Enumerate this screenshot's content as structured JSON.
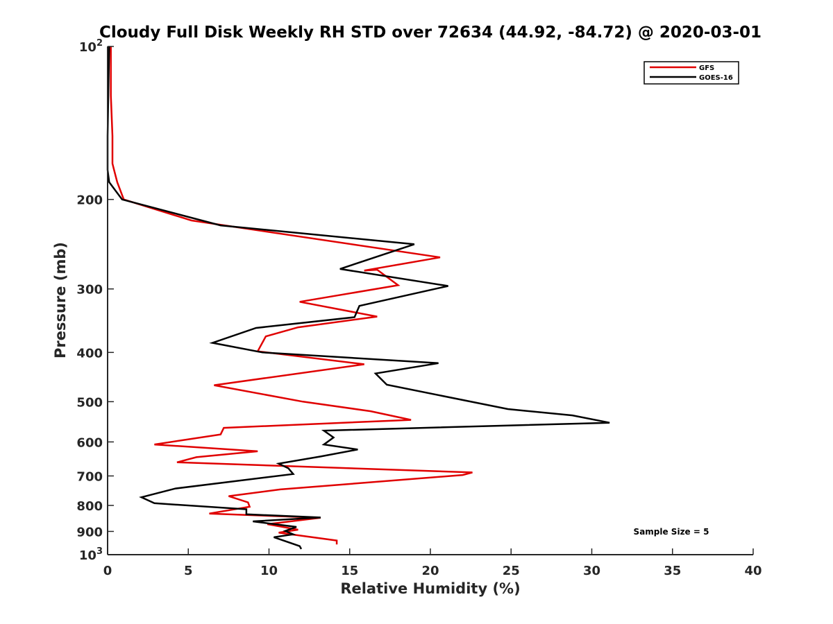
{
  "chart_data": {
    "type": "line",
    "title": "Cloudy Full Disk Weekly RH STD over 72634 (44.92, -84.72) @ 2020-03-01",
    "xlabel": "Relative Humidity (%)",
    "ylabel": "Pressure (mb)",
    "xlim": [
      0,
      40
    ],
    "ylim": [
      100,
      1000
    ],
    "yscale": "log",
    "y_reversed": true,
    "grid": false,
    "legend_position": "top-right",
    "x_ticks": [
      "0",
      "5",
      "10",
      "15",
      "20",
      "25",
      "30",
      "35",
      "40"
    ],
    "y_ticks": [
      {
        "value": 100,
        "base": "10",
        "exp": "2"
      },
      {
        "value": 200,
        "label": "200"
      },
      {
        "value": 300,
        "label": "300"
      },
      {
        "value": 400,
        "label": "400"
      },
      {
        "value": 500,
        "label": "500"
      },
      {
        "value": 600,
        "label": "600"
      },
      {
        "value": 700,
        "label": "700"
      },
      {
        "value": 800,
        "label": "800"
      },
      {
        "value": 900,
        "label": "900"
      },
      {
        "value": 1000,
        "base": "10",
        "exp": "3"
      }
    ],
    "series": [
      {
        "name": "GFS",
        "color": "#e00000",
        "points": [
          [
            0.2,
            100
          ],
          [
            0.2,
            125
          ],
          [
            0.3,
            150
          ],
          [
            0.3,
            170
          ],
          [
            0.4,
            175
          ],
          [
            0.6,
            185
          ],
          [
            1.0,
            200
          ],
          [
            5.2,
            220
          ],
          [
            20.6,
            260
          ],
          [
            15.9,
            276
          ],
          [
            16.7,
            275
          ],
          [
            18.0,
            295
          ],
          [
            11.9,
            318
          ],
          [
            16.7,
            340
          ],
          [
            11.8,
            357
          ],
          [
            9.8,
            372
          ],
          [
            9.3,
            398
          ],
          [
            15.9,
            422
          ],
          [
            6.6,
            464
          ],
          [
            12.1,
            500
          ],
          [
            16.3,
            522
          ],
          [
            18.8,
            543
          ],
          [
            7.2,
            563
          ],
          [
            7.0,
            580
          ],
          [
            2.9,
            607
          ],
          [
            9.3,
            626
          ],
          [
            5.5,
            643
          ],
          [
            4.3,
            658
          ],
          [
            22.6,
            689
          ],
          [
            22.0,
            697
          ],
          [
            10.7,
            744
          ],
          [
            7.5,
            767
          ],
          [
            8.7,
            789
          ],
          [
            8.8,
            805
          ],
          [
            6.3,
            830
          ],
          [
            13.2,
            846
          ],
          [
            9.9,
            871
          ],
          [
            11.8,
            893
          ],
          [
            10.6,
            905
          ],
          [
            14.2,
            938
          ],
          [
            14.2,
            955
          ]
        ]
      },
      {
        "name": "GOES-16",
        "color": "#000000",
        "points": [
          [
            0.1,
            100
          ],
          [
            0.0,
            150
          ],
          [
            0.0,
            175
          ],
          [
            0.1,
            185
          ],
          [
            0.9,
            200
          ],
          [
            7.0,
            225
          ],
          [
            19.0,
            245
          ],
          [
            14.4,
            274
          ],
          [
            21.1,
            296
          ],
          [
            15.6,
            324
          ],
          [
            15.3,
            341
          ],
          [
            9.2,
            358
          ],
          [
            6.5,
            383
          ],
          [
            9.6,
            400
          ],
          [
            20.5,
            420
          ],
          [
            16.6,
            440
          ],
          [
            17.3,
            463
          ],
          [
            24.8,
            517
          ],
          [
            28.8,
            532
          ],
          [
            31.1,
            550
          ],
          [
            13.4,
            570
          ],
          [
            14.0,
            588
          ],
          [
            13.4,
            607
          ],
          [
            15.5,
            621
          ],
          [
            13.2,
            641
          ],
          [
            10.6,
            662
          ],
          [
            11.2,
            676
          ],
          [
            11.5,
            694
          ],
          [
            4.2,
            741
          ],
          [
            2.1,
            771
          ],
          [
            2.9,
            792
          ],
          [
            8.6,
            814
          ],
          [
            8.6,
            833
          ],
          [
            13.2,
            845
          ],
          [
            9.0,
            860
          ],
          [
            11.7,
            882
          ],
          [
            11.0,
            898
          ],
          [
            11.5,
            912
          ],
          [
            10.3,
            924
          ],
          [
            11.9,
            962
          ],
          [
            12.0,
            975
          ]
        ]
      }
    ],
    "annotations": [
      "Sample Size = 5"
    ]
  }
}
